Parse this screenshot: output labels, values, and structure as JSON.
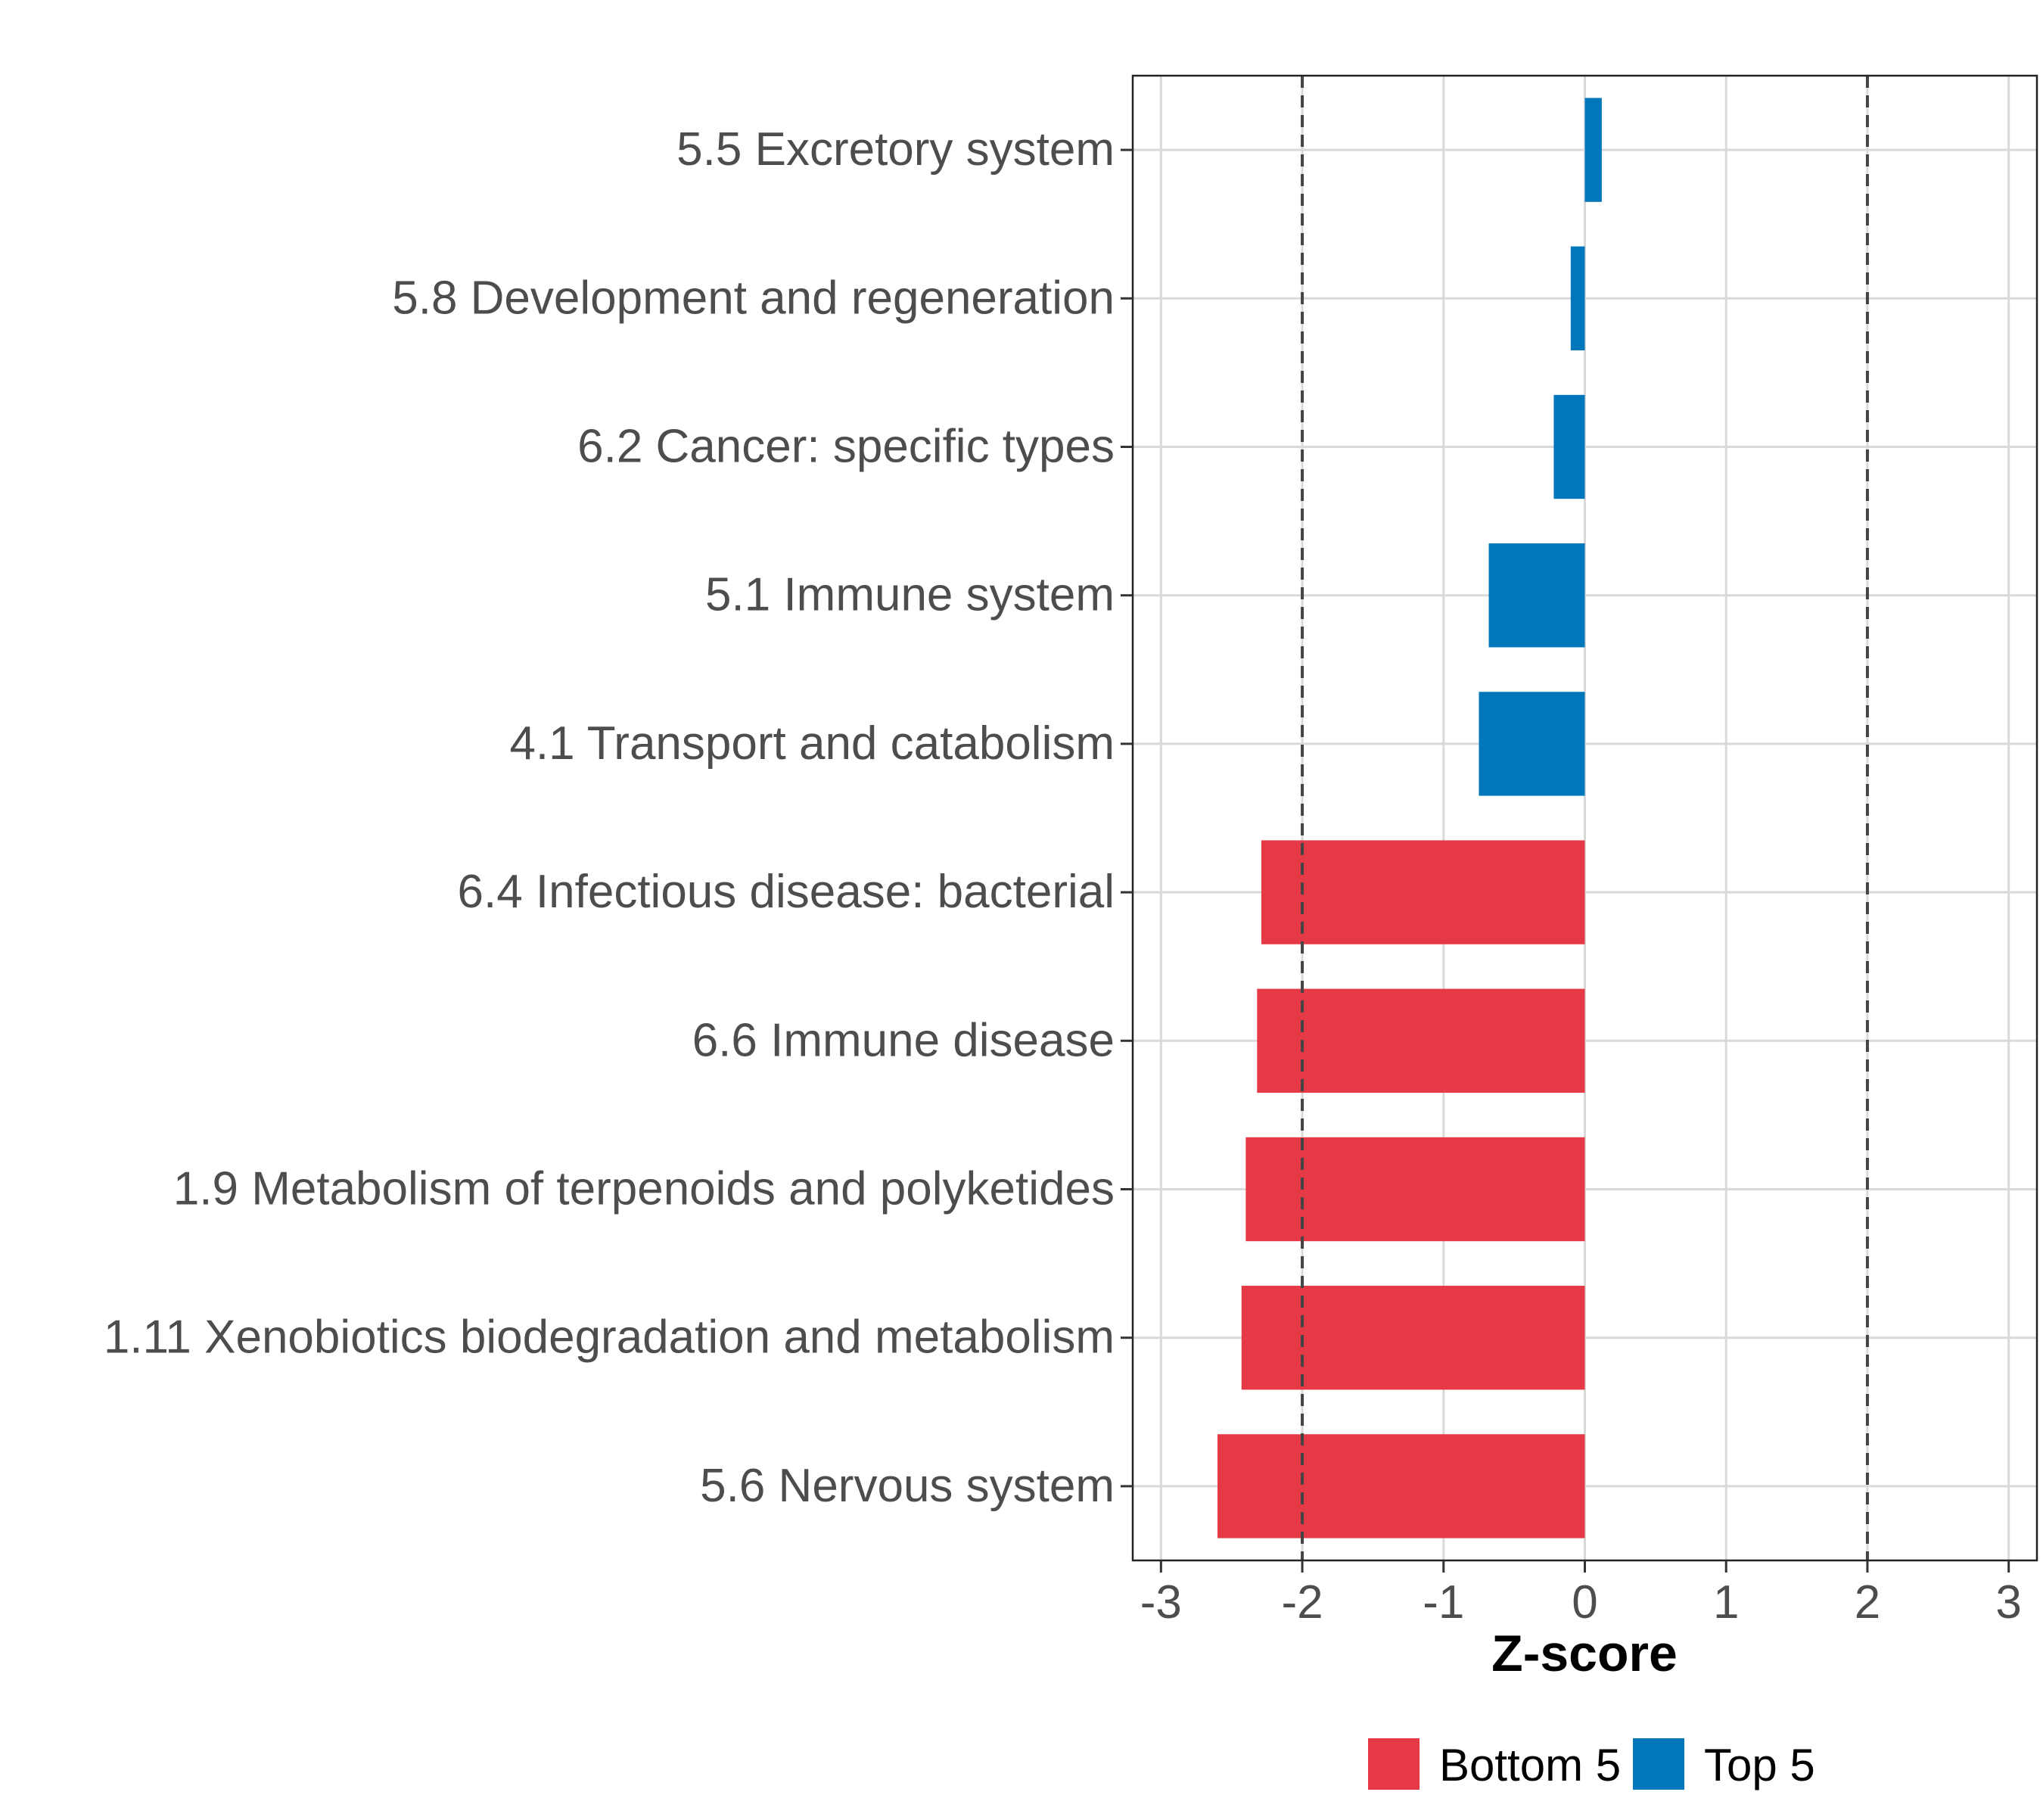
{
  "chart_data": {
    "type": "bar",
    "orientation": "horizontal",
    "title": "",
    "xlabel": "Z-score",
    "ylabel": "",
    "xlim": [
      -3.2,
      3.2
    ],
    "x_ticks": [
      -3,
      -2,
      -1,
      0,
      1,
      2,
      3
    ],
    "x_tick_labels": [
      "-3",
      "-2",
      "-1",
      "0",
      "1",
      "2",
      "3"
    ],
    "reference_lines": [
      -2,
      2
    ],
    "grid": true,
    "legend_position": "bottom",
    "categories": [
      "5.5 Excretory system",
      "5.8 Development and regeneration",
      "6.2 Cancer: specific types",
      "5.1 Immune system",
      "4.1 Transport and catabolism",
      "6.4 Infectious disease: bacterial",
      "6.6 Immune disease",
      "1.9 Metabolism of terpenoids and polyketides",
      "1.11 Xenobiotics biodegradation and metabolism",
      "5.6 Nervous system"
    ],
    "values": [
      0.12,
      -0.1,
      -0.22,
      -0.68,
      -0.75,
      -2.29,
      -2.32,
      -2.4,
      -2.43,
      -2.6
    ],
    "groups": [
      "Top 5",
      "Top 5",
      "Top 5",
      "Top 5",
      "Top 5",
      "Bottom 5",
      "Bottom 5",
      "Bottom 5",
      "Bottom 5",
      "Bottom 5"
    ],
    "legend": [
      {
        "name": "Bottom 5",
        "color": "#E63946"
      },
      {
        "name": "Top 5",
        "color": "#0077BB"
      }
    ]
  }
}
